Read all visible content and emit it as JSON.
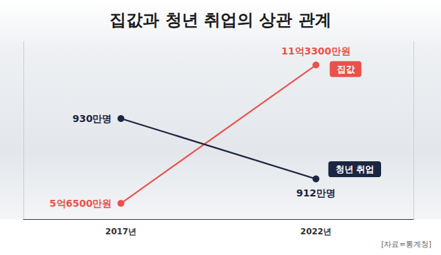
{
  "chart_data": {
    "type": "line",
    "title": "집값과 청년 취업의 상관 관계",
    "source": "[자료=통계청]",
    "categories": [
      "2017년",
      "2022년"
    ],
    "series": [
      {
        "name": "집값",
        "color": "#e8524a",
        "marker": "circle",
        "values": [
          56500,
          113300
        ],
        "value_labels": [
          "5억6500만원",
          "11억3300만원"
        ]
      },
      {
        "name": "청년 취업",
        "color": "#1c2541",
        "marker": "circle",
        "axis": "y2",
        "values": [
          930,
          912
        ],
        "value_labels": [
          "930만명",
          "912만명"
        ]
      }
    ],
    "ylim": [
      50000,
      123000
    ],
    "y2lim": [
      900,
      953
    ],
    "grid": false,
    "data_labels": true,
    "tick_labels": "x"
  }
}
